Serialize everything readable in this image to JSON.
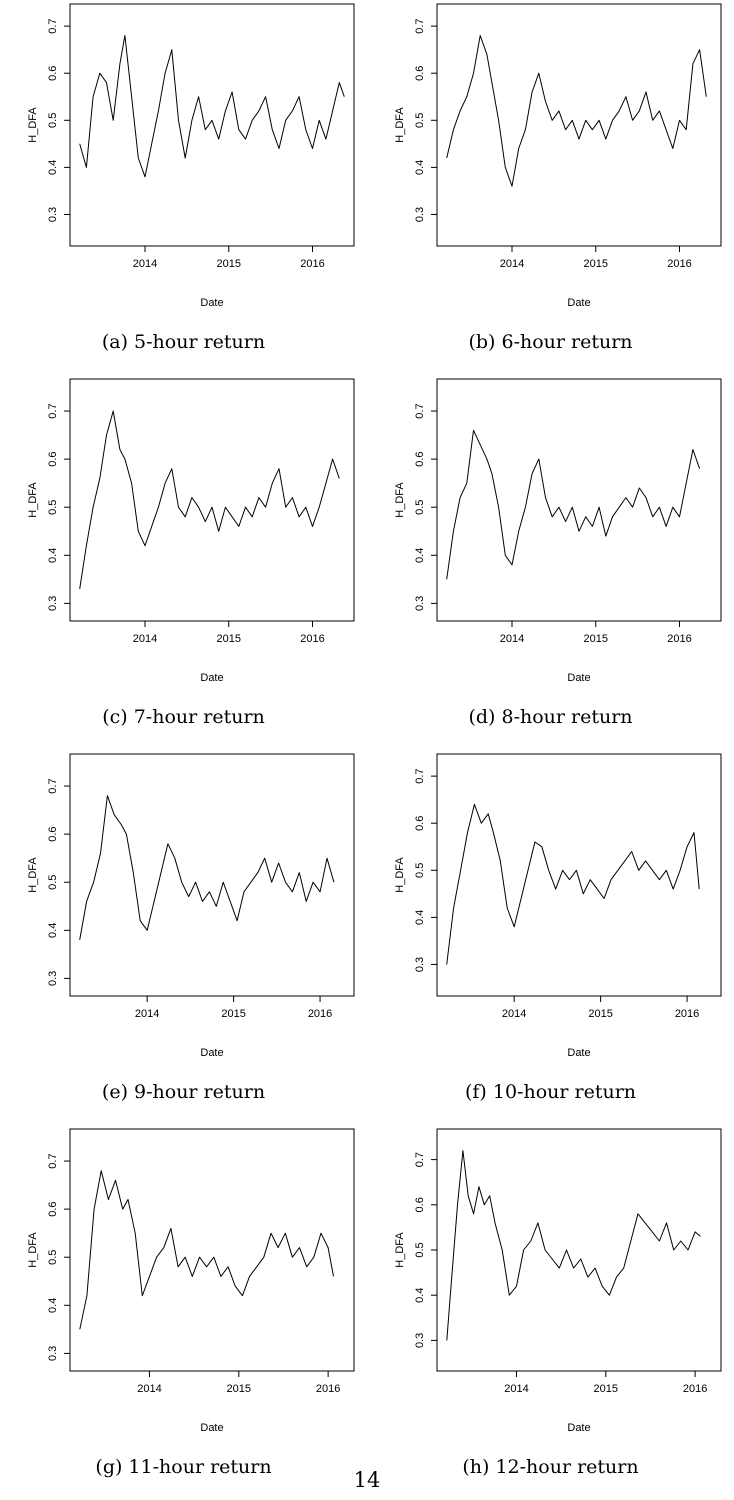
{
  "page_number": "14",
  "chart_data": [
    {
      "type": "line",
      "caption": "(a) 5-hour return",
      "xlabel": "Date",
      "ylabel": "H_DFA",
      "xlim": [
        2013.2,
        2016.4
      ],
      "ylim": [
        0.25,
        0.73
      ],
      "x_ticks": [
        "2014",
        "2015",
        "2016"
      ],
      "y_ticks": [
        "0.3",
        "0.4",
        "0.5",
        "0.6",
        "0.7"
      ],
      "x": [
        2013.22,
        2013.3,
        2013.38,
        2013.46,
        2013.54,
        2013.62,
        2013.7,
        2013.76,
        2013.84,
        2013.92,
        2014.0,
        2014.08,
        2014.16,
        2014.24,
        2014.32,
        2014.4,
        2014.48,
        2014.56,
        2014.64,
        2014.72,
        2014.8,
        2014.88,
        2014.96,
        2015.04,
        2015.12,
        2015.2,
        2015.28,
        2015.36,
        2015.44,
        2015.52,
        2015.6,
        2015.68,
        2015.76,
        2015.84,
        2015.92,
        2016.0,
        2016.08,
        2016.16,
        2016.24,
        2016.32,
        2016.38
      ],
      "y": [
        0.45,
        0.4,
        0.55,
        0.6,
        0.58,
        0.5,
        0.62,
        0.68,
        0.55,
        0.42,
        0.38,
        0.45,
        0.52,
        0.6,
        0.65,
        0.5,
        0.42,
        0.5,
        0.55,
        0.48,
        0.5,
        0.46,
        0.52,
        0.56,
        0.48,
        0.46,
        0.5,
        0.52,
        0.55,
        0.48,
        0.44,
        0.5,
        0.52,
        0.55,
        0.48,
        0.44,
        0.5,
        0.46,
        0.52,
        0.58,
        0.55
      ]
    },
    {
      "type": "line",
      "caption": "(b) 6-hour return",
      "xlabel": "Date",
      "ylabel": "H_DFA",
      "xlim": [
        2013.2,
        2016.4
      ],
      "ylim": [
        0.25,
        0.73
      ],
      "x_ticks": [
        "2014",
        "2015",
        "2016"
      ],
      "y_ticks": [
        "0.3",
        "0.4",
        "0.5",
        "0.6",
        "0.7"
      ],
      "x": [
        2013.22,
        2013.3,
        2013.38,
        2013.46,
        2013.54,
        2013.62,
        2013.7,
        2013.76,
        2013.84,
        2013.92,
        2014.0,
        2014.08,
        2014.16,
        2014.24,
        2014.32,
        2014.4,
        2014.48,
        2014.56,
        2014.64,
        2014.72,
        2014.8,
        2014.88,
        2014.96,
        2015.04,
        2015.12,
        2015.2,
        2015.28,
        2015.36,
        2015.44,
        2015.52,
        2015.6,
        2015.68,
        2015.76,
        2015.84,
        2015.92,
        2016.0,
        2016.08,
        2016.16,
        2016.24,
        2016.32
      ],
      "y": [
        0.42,
        0.48,
        0.52,
        0.55,
        0.6,
        0.68,
        0.64,
        0.58,
        0.5,
        0.4,
        0.36,
        0.44,
        0.48,
        0.56,
        0.6,
        0.54,
        0.5,
        0.52,
        0.48,
        0.5,
        0.46,
        0.5,
        0.48,
        0.5,
        0.46,
        0.5,
        0.52,
        0.55,
        0.5,
        0.52,
        0.56,
        0.5,
        0.52,
        0.48,
        0.44,
        0.5,
        0.48,
        0.62,
        0.65,
        0.55
      ]
    },
    {
      "type": "line",
      "caption": "(c) 7-hour return",
      "xlabel": "Date",
      "ylabel": "H_DFA",
      "xlim": [
        2013.2,
        2016.4
      ],
      "ylim": [
        0.28,
        0.75
      ],
      "x_ticks": [
        "2014",
        "2015",
        "2016"
      ],
      "y_ticks": [
        "0.3",
        "0.4",
        "0.5",
        "0.6",
        "0.7"
      ],
      "x": [
        2013.22,
        2013.3,
        2013.38,
        2013.46,
        2013.54,
        2013.62,
        2013.7,
        2013.76,
        2013.84,
        2013.92,
        2014.0,
        2014.08,
        2014.16,
        2014.24,
        2014.32,
        2014.4,
        2014.48,
        2014.56,
        2014.64,
        2014.72,
        2014.8,
        2014.88,
        2014.96,
        2015.04,
        2015.12,
        2015.2,
        2015.28,
        2015.36,
        2015.44,
        2015.52,
        2015.6,
        2015.68,
        2015.76,
        2015.84,
        2015.92,
        2016.0,
        2016.08,
        2016.16,
        2016.24,
        2016.32
      ],
      "y": [
        0.33,
        0.42,
        0.5,
        0.56,
        0.65,
        0.7,
        0.62,
        0.6,
        0.55,
        0.45,
        0.42,
        0.46,
        0.5,
        0.55,
        0.58,
        0.5,
        0.48,
        0.52,
        0.5,
        0.47,
        0.5,
        0.45,
        0.5,
        0.48,
        0.46,
        0.5,
        0.48,
        0.52,
        0.5,
        0.55,
        0.58,
        0.5,
        0.52,
        0.48,
        0.5,
        0.46,
        0.5,
        0.55,
        0.6,
        0.56
      ]
    },
    {
      "type": "line",
      "caption": "(d) 8-hour return",
      "xlabel": "Date",
      "ylabel": "H_DFA",
      "xlim": [
        2013.2,
        2016.4
      ],
      "ylim": [
        0.28,
        0.75
      ],
      "x_ticks": [
        "2014",
        "2015",
        "2016"
      ],
      "y_ticks": [
        "0.3",
        "0.4",
        "0.5",
        "0.6",
        "0.7"
      ],
      "x": [
        2013.22,
        2013.3,
        2013.38,
        2013.46,
        2013.54,
        2013.62,
        2013.7,
        2013.76,
        2013.84,
        2013.92,
        2014.0,
        2014.08,
        2014.16,
        2014.24,
        2014.32,
        2014.4,
        2014.48,
        2014.56,
        2014.64,
        2014.72,
        2014.8,
        2014.88,
        2014.96,
        2015.04,
        2015.12,
        2015.2,
        2015.28,
        2015.36,
        2015.44,
        2015.52,
        2015.6,
        2015.68,
        2015.76,
        2015.84,
        2015.92,
        2016.0,
        2016.08,
        2016.16,
        2016.24
      ],
      "y": [
        0.35,
        0.45,
        0.52,
        0.55,
        0.66,
        0.63,
        0.6,
        0.57,
        0.5,
        0.4,
        0.38,
        0.45,
        0.5,
        0.57,
        0.6,
        0.52,
        0.48,
        0.5,
        0.47,
        0.5,
        0.45,
        0.48,
        0.46,
        0.5,
        0.44,
        0.48,
        0.5,
        0.52,
        0.5,
        0.54,
        0.52,
        0.48,
        0.5,
        0.46,
        0.5,
        0.48,
        0.55,
        0.62,
        0.58
      ]
    },
    {
      "type": "line",
      "caption": "(e) 9-hour return",
      "xlabel": "Date",
      "ylabel": "H_DFA",
      "xlim": [
        2013.2,
        2016.3
      ],
      "ylim": [
        0.28,
        0.75
      ],
      "x_ticks": [
        "2014",
        "2015",
        "2016"
      ],
      "y_ticks": [
        "0.3",
        "0.4",
        "0.5",
        "0.6",
        "0.7"
      ],
      "x": [
        2013.22,
        2013.3,
        2013.38,
        2013.46,
        2013.54,
        2013.62,
        2013.7,
        2013.76,
        2013.84,
        2013.92,
        2014.0,
        2014.08,
        2014.16,
        2014.24,
        2014.32,
        2014.4,
        2014.48,
        2014.56,
        2014.64,
        2014.72,
        2014.8,
        2014.88,
        2014.96,
        2015.04,
        2015.12,
        2015.2,
        2015.28,
        2015.36,
        2015.44,
        2015.52,
        2015.6,
        2015.68,
        2015.76,
        2015.84,
        2015.92,
        2016.0,
        2016.08,
        2016.16
      ],
      "y": [
        0.38,
        0.46,
        0.5,
        0.56,
        0.68,
        0.64,
        0.62,
        0.6,
        0.52,
        0.42,
        0.4,
        0.46,
        0.52,
        0.58,
        0.55,
        0.5,
        0.47,
        0.5,
        0.46,
        0.48,
        0.45,
        0.5,
        0.46,
        0.42,
        0.48,
        0.5,
        0.52,
        0.55,
        0.5,
        0.54,
        0.5,
        0.48,
        0.52,
        0.46,
        0.5,
        0.48,
        0.55,
        0.5
      ]
    },
    {
      "type": "line",
      "caption": "(f) 10-hour return",
      "xlabel": "Date",
      "ylabel": "H_DFA",
      "xlim": [
        2013.2,
        2016.3
      ],
      "ylim": [
        0.25,
        0.73
      ],
      "x_ticks": [
        "2014",
        "2015",
        "2016"
      ],
      "y_ticks": [
        "0.3",
        "0.4",
        "0.5",
        "0.6",
        "0.7"
      ],
      "x": [
        2013.22,
        2013.3,
        2013.38,
        2013.46,
        2013.54,
        2013.62,
        2013.7,
        2013.76,
        2013.84,
        2013.92,
        2014.0,
        2014.08,
        2014.16,
        2014.24,
        2014.32,
        2014.4,
        2014.48,
        2014.56,
        2014.64,
        2014.72,
        2014.8,
        2014.88,
        2014.96,
        2015.04,
        2015.12,
        2015.2,
        2015.28,
        2015.36,
        2015.44,
        2015.52,
        2015.6,
        2015.68,
        2015.76,
        2015.84,
        2015.92,
        2016.0,
        2016.08,
        2016.14
      ],
      "y": [
        0.3,
        0.42,
        0.5,
        0.58,
        0.64,
        0.6,
        0.62,
        0.58,
        0.52,
        0.42,
        0.38,
        0.44,
        0.5,
        0.56,
        0.55,
        0.5,
        0.46,
        0.5,
        0.48,
        0.5,
        0.45,
        0.48,
        0.46,
        0.44,
        0.48,
        0.5,
        0.52,
        0.54,
        0.5,
        0.52,
        0.5,
        0.48,
        0.5,
        0.46,
        0.5,
        0.55,
        0.58,
        0.46
      ]
    },
    {
      "type": "line",
      "caption": "(g) 11-hour return",
      "xlabel": "Date",
      "ylabel": "H_DFA",
      "xlim": [
        2013.2,
        2016.2
      ],
      "ylim": [
        0.28,
        0.75
      ],
      "x_ticks": [
        "2014",
        "2015",
        "2016"
      ],
      "y_ticks": [
        "0.3",
        "0.4",
        "0.5",
        "0.6",
        "0.7"
      ],
      "x": [
        2013.22,
        2013.3,
        2013.38,
        2013.46,
        2013.54,
        2013.62,
        2013.7,
        2013.76,
        2013.84,
        2013.92,
        2014.0,
        2014.08,
        2014.16,
        2014.24,
        2014.32,
        2014.4,
        2014.48,
        2014.56,
        2014.64,
        2014.72,
        2014.8,
        2014.88,
        2014.96,
        2015.04,
        2015.12,
        2015.2,
        2015.28,
        2015.36,
        2015.44,
        2015.52,
        2015.6,
        2015.68,
        2015.76,
        2015.84,
        2015.92,
        2016.0,
        2016.06
      ],
      "y": [
        0.35,
        0.42,
        0.6,
        0.68,
        0.62,
        0.66,
        0.6,
        0.62,
        0.55,
        0.42,
        0.46,
        0.5,
        0.52,
        0.56,
        0.48,
        0.5,
        0.46,
        0.5,
        0.48,
        0.5,
        0.46,
        0.48,
        0.44,
        0.42,
        0.46,
        0.48,
        0.5,
        0.55,
        0.52,
        0.55,
        0.5,
        0.52,
        0.48,
        0.5,
        0.55,
        0.52,
        0.46
      ]
    },
    {
      "type": "line",
      "caption": "(h) 12-hour return",
      "xlabel": "Date",
      "ylabel": "H_DFA",
      "xlim": [
        2013.2,
        2016.2
      ],
      "ylim": [
        0.25,
        0.75
      ],
      "x_ticks": [
        "2014",
        "2015",
        "2016"
      ],
      "y_ticks": [
        "0.3",
        "0.4",
        "0.5",
        "0.6",
        "0.7"
      ],
      "x": [
        2013.22,
        2013.28,
        2013.34,
        2013.4,
        2013.46,
        2013.52,
        2013.58,
        2013.64,
        2013.7,
        2013.76,
        2013.84,
        2013.92,
        2014.0,
        2014.08,
        2014.16,
        2014.24,
        2014.32,
        2014.4,
        2014.48,
        2014.56,
        2014.64,
        2014.72,
        2014.8,
        2014.88,
        2014.96,
        2015.04,
        2015.12,
        2015.2,
        2015.28,
        2015.36,
        2015.44,
        2015.52,
        2015.6,
        2015.68,
        2015.76,
        2015.84,
        2015.92,
        2016.0,
        2016.06
      ],
      "y": [
        0.3,
        0.45,
        0.6,
        0.72,
        0.62,
        0.58,
        0.64,
        0.6,
        0.62,
        0.56,
        0.5,
        0.4,
        0.42,
        0.5,
        0.52,
        0.56,
        0.5,
        0.48,
        0.46,
        0.5,
        0.46,
        0.48,
        0.44,
        0.46,
        0.42,
        0.4,
        0.44,
        0.46,
        0.52,
        0.58,
        0.56,
        0.54,
        0.52,
        0.56,
        0.5,
        0.52,
        0.5,
        0.54,
        0.53
      ]
    }
  ]
}
